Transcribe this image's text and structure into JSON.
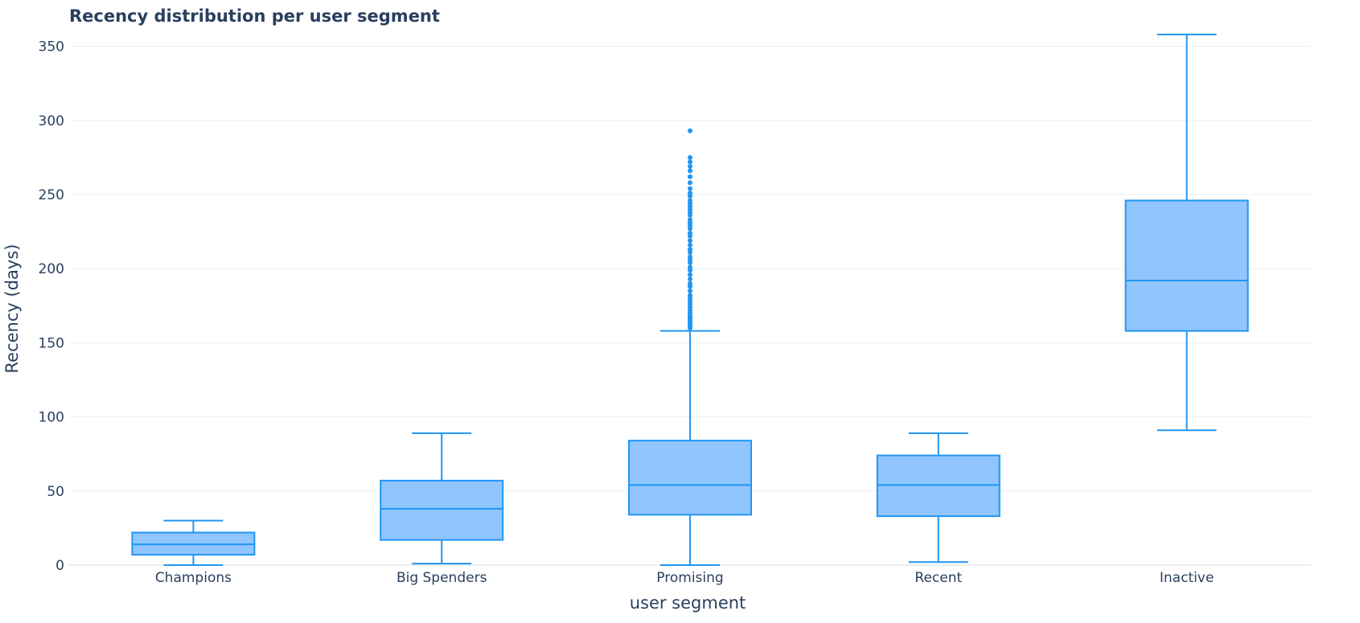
{
  "chart_data": {
    "type": "box",
    "title": "Recency distribution per user segment",
    "xlabel": "user segment",
    "ylabel": "Recency (days)",
    "ylim": [
      0,
      365
    ],
    "yticks": [
      0,
      50,
      100,
      150,
      200,
      250,
      300,
      350
    ],
    "grid": true,
    "categories": [
      "Champions",
      "Big Spenders",
      "Promising",
      "Recent",
      "Inactive"
    ],
    "series": [
      {
        "boxes": [
          {
            "category": "Champions",
            "lower_fence": 0,
            "q1": 7,
            "median": 14,
            "q3": 22,
            "upper_fence": 30,
            "outliers": []
          },
          {
            "category": "Big Spenders",
            "lower_fence": 1,
            "q1": 17,
            "median": 38,
            "q3": 57,
            "upper_fence": 89,
            "outliers": []
          },
          {
            "category": "Promising",
            "lower_fence": 0,
            "q1": 34,
            "median": 54,
            "q3": 84,
            "upper_fence": 158,
            "outliers": [
              160,
              161,
              162,
              163,
              164,
              165,
              166,
              167,
              168,
              170,
              172,
              174,
              176,
              178,
              180,
              182,
              185,
              188,
              190,
              193,
              196,
              199,
              201,
              204,
              206,
              208,
              211,
              213,
              216,
              219,
              222,
              224,
              227,
              229,
              231,
              233,
              236,
              238,
              240,
              242,
              244,
              246,
              249,
              251,
              254,
              258,
              262,
              266,
              269,
              272,
              275,
              293
            ]
          },
          {
            "category": "Recent",
            "lower_fence": 2,
            "q1": 33,
            "median": 54,
            "q3": 74,
            "upper_fence": 89,
            "outliers": []
          },
          {
            "category": "Inactive",
            "lower_fence": 91,
            "q1": 158,
            "median": 192,
            "q3": 246,
            "upper_fence": 358,
            "outliers": []
          }
        ]
      }
    ],
    "colors": {
      "line": "#2196f3",
      "fill": "#90c5fd",
      "grid": "#ebedf0",
      "zeroline": "#ebedf0",
      "text": "#2a3f5f"
    }
  }
}
